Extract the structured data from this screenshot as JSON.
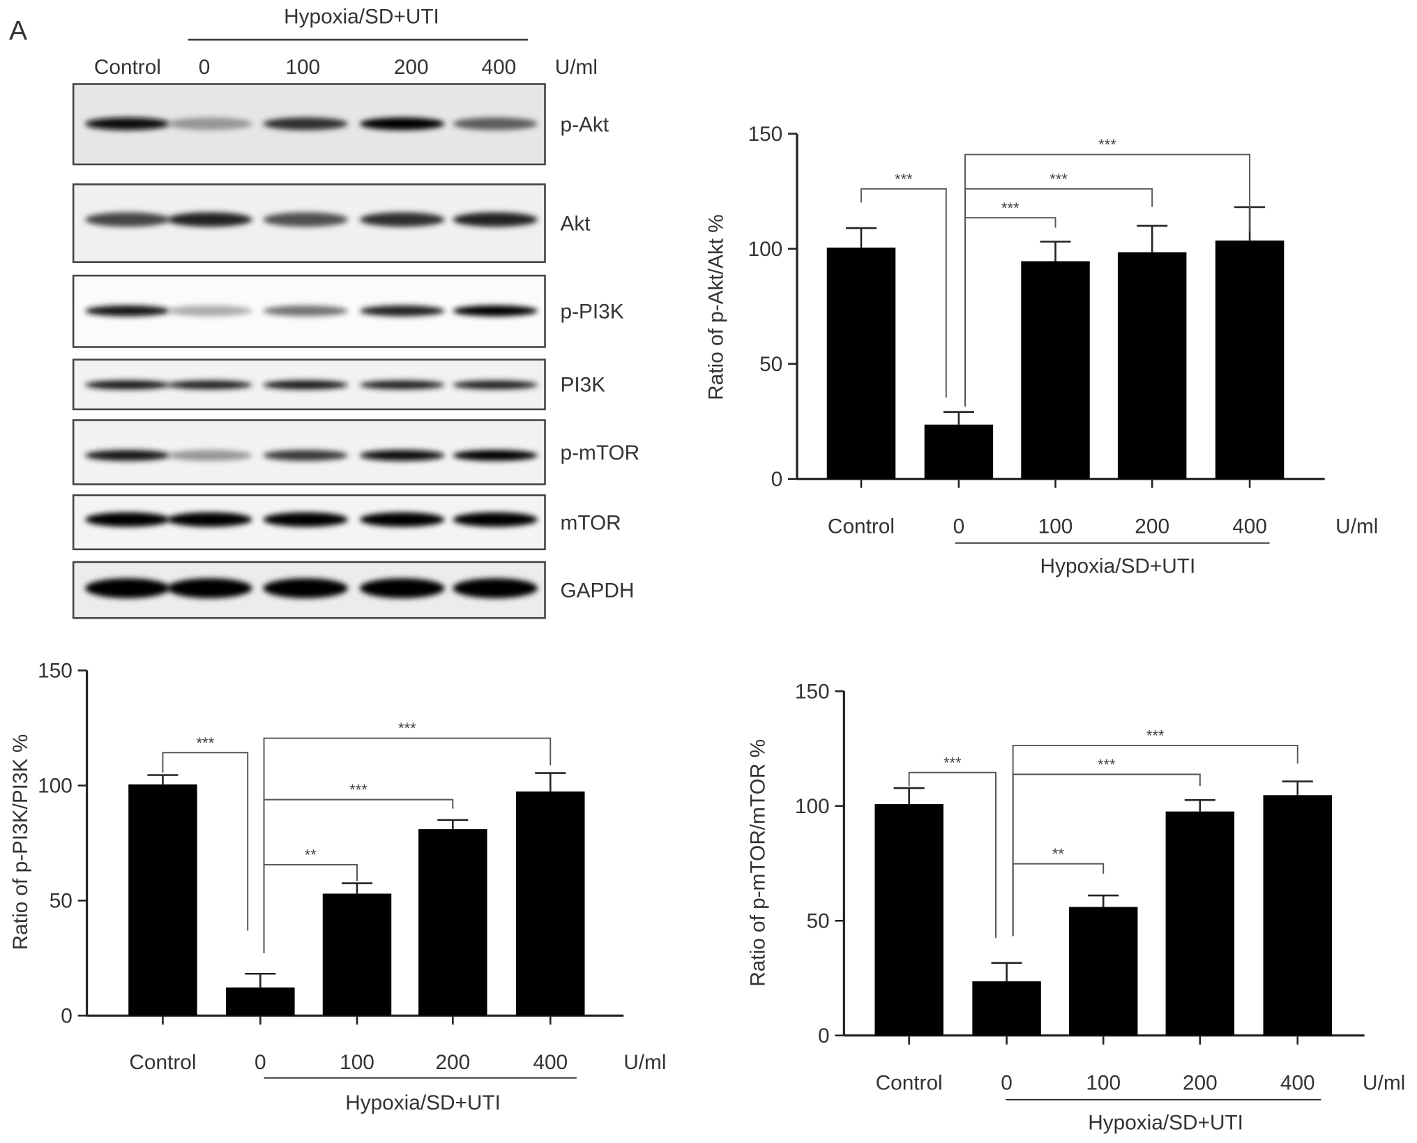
{
  "panel_label": "A",
  "blot": {
    "group_label": "Hypoxia/SD+UTI",
    "lanes": [
      "Control",
      "0",
      "100",
      "200",
      "400"
    ],
    "unit": "U/ml",
    "rows": [
      {
        "label": "p-Akt",
        "band_intensity": [
          0.95,
          0.35,
          0.8,
          1.0,
          0.6
        ]
      },
      {
        "label": "Akt",
        "band_intensity": [
          0.7,
          0.85,
          0.65,
          0.8,
          0.85
        ]
      },
      {
        "label": "p-PI3K",
        "band_intensity": [
          0.9,
          0.25,
          0.5,
          0.85,
          1.0
        ]
      },
      {
        "label": "PI3K",
        "band_intensity": [
          0.9,
          0.85,
          0.9,
          0.85,
          0.85
        ]
      },
      {
        "label": "p-mTOR",
        "band_intensity": [
          0.9,
          0.35,
          0.75,
          0.95,
          1.0
        ]
      },
      {
        "label": "mTOR",
        "band_intensity": [
          1.0,
          1.0,
          1.0,
          1.0,
          1.0
        ]
      },
      {
        "label": "GAPDH",
        "band_intensity": [
          1.0,
          1.0,
          1.0,
          1.0,
          1.0
        ]
      }
    ]
  },
  "chart_data": [
    {
      "type": "bar",
      "ylabel": "Ratio of p-Akt/Akt %",
      "categories": [
        "Control",
        "0",
        "100",
        "200",
        "400"
      ],
      "unit": "U/ml",
      "group_label": "Hypoxia/SD+UTI",
      "values": [
        100.5,
        23.6,
        94.6,
        98.5,
        103.6
      ],
      "errors": [
        8.5,
        5.5,
        8.5,
        11.5,
        14.5
      ],
      "ylim": [
        0,
        150
      ],
      "yticks": [
        "0",
        "50",
        "100",
        "150"
      ],
      "significance": [
        {
          "from": "Control",
          "to": "0",
          "label": "***"
        },
        {
          "from": "0",
          "to": "100",
          "label": "***"
        },
        {
          "from": "0",
          "to": "200",
          "label": "***"
        },
        {
          "from": "0",
          "to": "400",
          "label": "***"
        }
      ]
    },
    {
      "type": "bar",
      "ylabel": "Ratio of p-PI3K/PI3K %",
      "categories": [
        "Control",
        "0",
        "100",
        "200",
        "400"
      ],
      "unit": "U/ml",
      "group_label": "Hypoxia/SD+UTI",
      "values": [
        100.5,
        12.2,
        53,
        81,
        97.4
      ],
      "errors": [
        4,
        6,
        4.5,
        4,
        8
      ],
      "ylim": [
        0,
        150
      ],
      "yticks": [
        "0",
        "50",
        "100",
        "150"
      ],
      "significance": [
        {
          "from": "Control",
          "to": "0",
          "label": "***"
        },
        {
          "from": "0",
          "to": "100",
          "label": "**"
        },
        {
          "from": "0",
          "to": "200",
          "label": "***"
        },
        {
          "from": "0",
          "to": "400",
          "label": "***"
        }
      ]
    },
    {
      "type": "bar",
      "ylabel": "Ratio of p-mTOR/mTOR %",
      "categories": [
        "Control",
        "0",
        "100",
        "200",
        "400"
      ],
      "unit": "U/ml",
      "group_label": "Hypoxia/SD+UTI",
      "values": [
        100.8,
        23.6,
        56,
        97.6,
        104.7
      ],
      "errors": [
        7,
        8,
        5,
        5,
        6
      ],
      "ylim": [
        0,
        150
      ],
      "yticks": [
        "0",
        "50",
        "100",
        "150"
      ],
      "significance": [
        {
          "from": "Control",
          "to": "0",
          "label": "***"
        },
        {
          "from": "0",
          "to": "100",
          "label": "**"
        },
        {
          "from": "0",
          "to": "200",
          "label": "***"
        },
        {
          "from": "0",
          "to": "400",
          "label": "***"
        }
      ]
    }
  ]
}
